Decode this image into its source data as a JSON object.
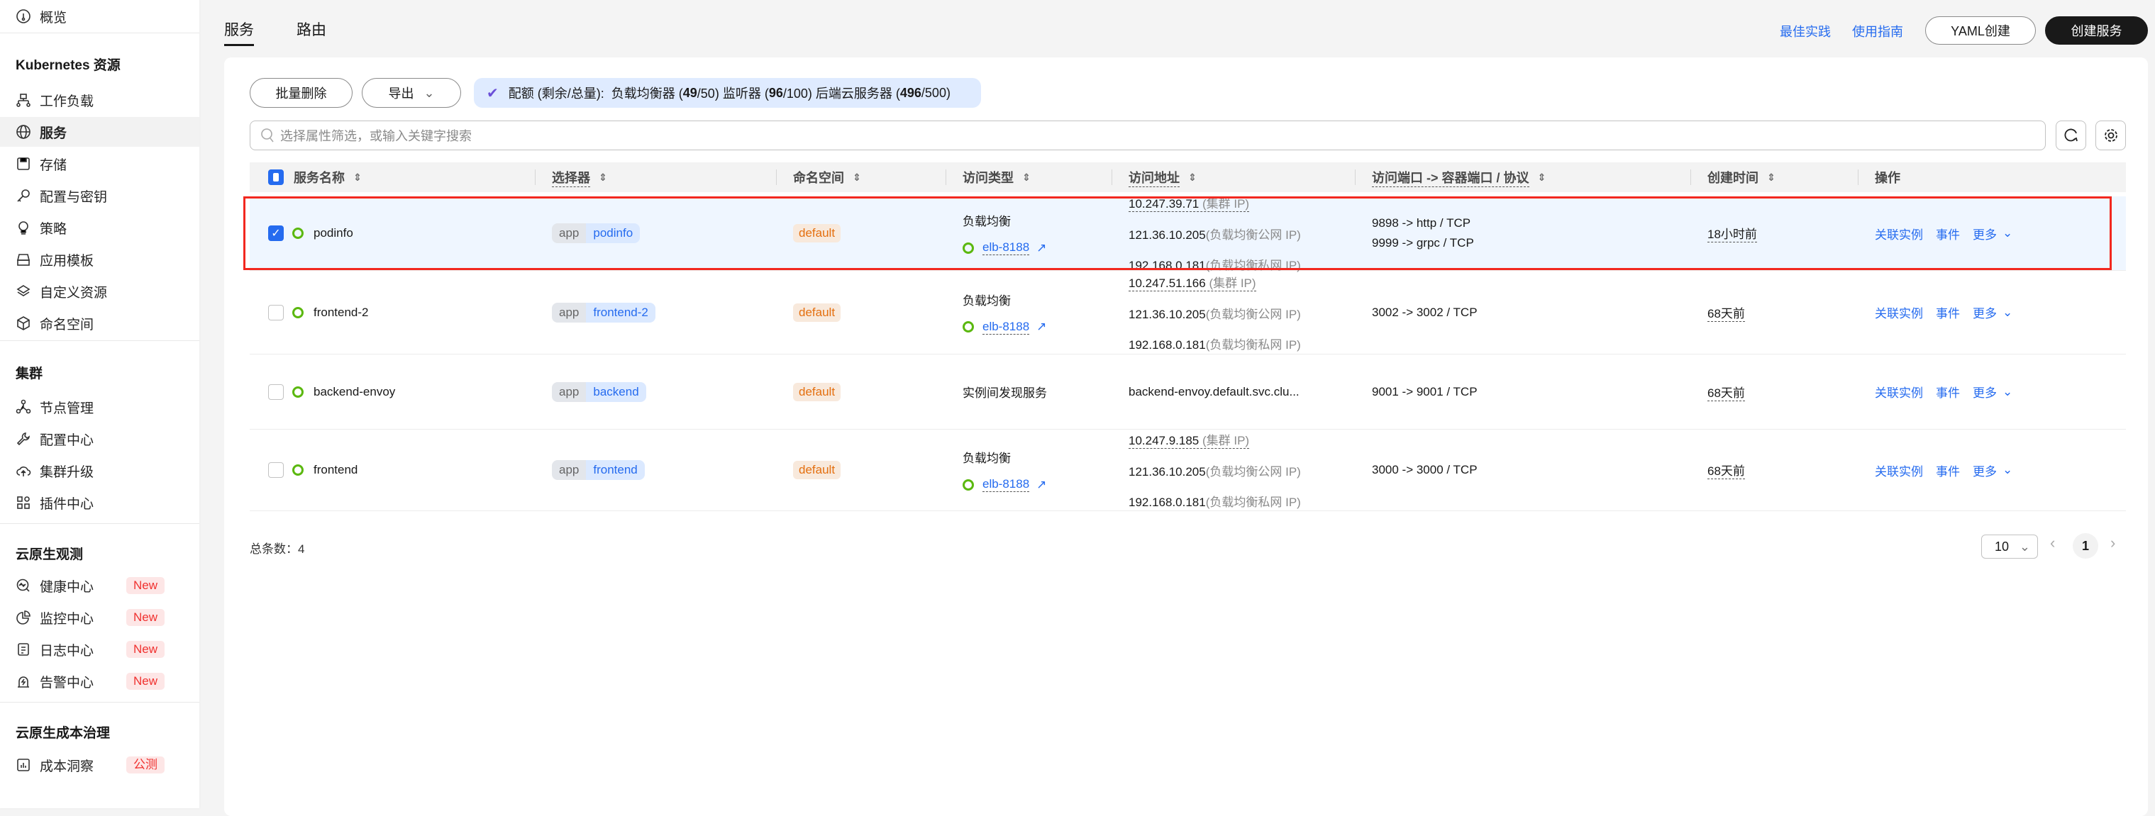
{
  "sidebar": {
    "overview": "概览",
    "sections": [
      {
        "title": "Kubernetes 资源",
        "items": [
          {
            "label": "工作负载",
            "icon": "workload-icon"
          },
          {
            "label": "服务",
            "icon": "globe-icon",
            "active": true
          },
          {
            "label": "存储",
            "icon": "storage-icon"
          },
          {
            "label": "配置与密钥",
            "icon": "key-icon"
          },
          {
            "label": "策略",
            "icon": "bulb-icon"
          },
          {
            "label": "应用模板",
            "icon": "template-icon"
          },
          {
            "label": "自定义资源",
            "icon": "layers-icon"
          },
          {
            "label": "命名空间",
            "icon": "cube-icon"
          }
        ]
      },
      {
        "title": "集群",
        "items": [
          {
            "label": "节点管理",
            "icon": "nodes-icon"
          },
          {
            "label": "配置中心",
            "icon": "wrench-icon"
          },
          {
            "label": "集群升级",
            "icon": "cloud-upload-icon"
          },
          {
            "label": "插件中心",
            "icon": "grid-icon"
          }
        ]
      },
      {
        "title": "云原生观测",
        "items": [
          {
            "label": "健康中心",
            "icon": "health-icon",
            "badge": "New"
          },
          {
            "label": "监控中心",
            "icon": "pie-icon",
            "badge": "New"
          },
          {
            "label": "日志中心",
            "icon": "log-icon",
            "badge": "New"
          },
          {
            "label": "告警中心",
            "icon": "alarm-icon",
            "badge": "New"
          }
        ]
      },
      {
        "title": "云原生成本治理",
        "items": [
          {
            "label": "成本洞察",
            "icon": "chart-icon",
            "badge": "公测"
          }
        ]
      }
    ]
  },
  "header": {
    "tabs": [
      "服务",
      "路由"
    ],
    "links": [
      "最佳实践",
      "使用指南"
    ],
    "yaml_button": "YAML创建",
    "create_button": "创建服务"
  },
  "toolbar": {
    "batch_delete": "批量删除",
    "export": "导出",
    "quota": {
      "prefix": "配额 (剩余/总量):  负载均衡器 (",
      "lb_left": "49",
      "lb_total": "/50) 监听器 (",
      "listener_left": "96",
      "listener_total": "/100) 后端云服务器 (",
      "server_left": "496",
      "server_total": "/500)"
    },
    "search_placeholder": "选择属性筛选，或输入关键字搜索"
  },
  "table": {
    "headers": [
      "服务名称",
      "选择器",
      "命名空间",
      "访问类型",
      "访问地址",
      "访问端口 -> 容器端口 / 协议",
      "创建时间",
      "操作"
    ],
    "rows": [
      {
        "selected": true,
        "name": "podinfo",
        "selector_key": "app",
        "selector_value": "podinfo",
        "namespace": "default",
        "type": "负载均衡",
        "elb": "elb-8188",
        "addresses": [
          {
            "ip": "10.247.39.71",
            "label": " (集群 IP)"
          },
          {
            "ip": "121.36.10.205",
            "label": "(负载均衡公网 IP)"
          },
          {
            "ip": "192.168.0.181",
            "label": "(负载均衡私网 IP)"
          }
        ],
        "ports": [
          "9898 -> http / TCP",
          "9999 -> grpc / TCP"
        ],
        "created": "18小时前"
      },
      {
        "selected": false,
        "name": "frontend-2",
        "selector_key": "app",
        "selector_value": "frontend-2",
        "namespace": "default",
        "type": "负载均衡",
        "elb": "elb-8188",
        "addresses": [
          {
            "ip": "10.247.51.166",
            "label": " (集群 IP)"
          },
          {
            "ip": "121.36.10.205",
            "label": "(负载均衡公网 IP)"
          },
          {
            "ip": "192.168.0.181",
            "label": "(负载均衡私网 IP)"
          }
        ],
        "ports": [
          "3002 -> 3002 / TCP"
        ],
        "created": "68天前"
      },
      {
        "selected": false,
        "name": "backend-envoy",
        "selector_key": "app",
        "selector_value": "backend",
        "namespace": "default",
        "type": "实例间发现服务",
        "addresses": [
          {
            "ip": "backend-envoy.default.svc.clu...",
            "label": ""
          }
        ],
        "ports": [
          "9001 -> 9001 / TCP"
        ],
        "created": "68天前"
      },
      {
        "selected": false,
        "name": "frontend",
        "selector_key": "app",
        "selector_value": "frontend",
        "namespace": "default",
        "type": "负载均衡",
        "elb": "elb-8188",
        "addresses": [
          {
            "ip": "10.247.9.185",
            "label": " (集群 IP)"
          },
          {
            "ip": "121.36.10.205",
            "label": "(负载均衡公网 IP)"
          },
          {
            "ip": "192.168.0.181",
            "label": "(负载均衡私网 IP)"
          }
        ],
        "ports": [
          "3000 -> 3000 / TCP"
        ],
        "created": "68天前"
      }
    ],
    "actions": [
      "关联实例",
      "事件",
      "更多"
    ]
  },
  "footer": {
    "total_label": "总条数：",
    "total": "4",
    "page_size": "10",
    "current_page": "1"
  },
  "colors": {
    "accent": "#256bef",
    "highlight": "#f2281f",
    "status": "#5bb80f",
    "badge": "#f0312f"
  }
}
